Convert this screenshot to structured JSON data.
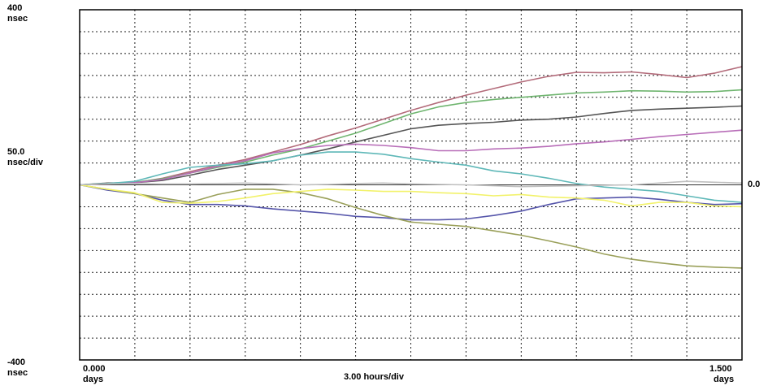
{
  "labels": {
    "y_top_value": "400",
    "y_top_unit": "nsec",
    "y_scale_value": "50.0",
    "y_scale_unit": "nsec/div",
    "y_bottom_value": "-400",
    "y_bottom_unit": "nsec",
    "x_start_value": "0.000",
    "x_start_unit": "days",
    "x_scale": "3.00 hours/div",
    "x_end_value": "1.500",
    "x_end_unit": "days",
    "zero_label": "0.0"
  },
  "chart_data": {
    "type": "line",
    "title": "",
    "x_unit": "days",
    "y_unit": "nsec",
    "xlim": [
      0,
      1.5
    ],
    "ylim": [
      -400,
      400
    ],
    "x_divisions": 12,
    "y_divisions": 16,
    "grid": true,
    "grid_style": "dotted",
    "x": [
      0,
      0.0625,
      0.125,
      0.1875,
      0.25,
      0.3125,
      0.375,
      0.4375,
      0.5,
      0.5625,
      0.625,
      0.6875,
      0.75,
      0.8125,
      0.875,
      0.9375,
      1.0,
      1.0625,
      1.125,
      1.1875,
      1.25,
      1.3125,
      1.375,
      1.4375,
      1.5
    ],
    "series": [
      {
        "color": "#b36b7a",
        "values": [
          0,
          2,
          5,
          15,
          30,
          45,
          58,
          75,
          92,
          112,
          130,
          150,
          170,
          188,
          205,
          220,
          235,
          248,
          257,
          256,
          258,
          252,
          245,
          255,
          270
        ]
      },
      {
        "color": "#6fb56f",
        "values": [
          0,
          3,
          6,
          14,
          27,
          40,
          52,
          68,
          82,
          100,
          118,
          140,
          162,
          178,
          188,
          195,
          200,
          205,
          210,
          212,
          215,
          214,
          212,
          213,
          217
        ]
      },
      {
        "color": "#555555",
        "values": [
          0,
          4,
          5,
          10,
          22,
          35,
          45,
          55,
          68,
          82,
          98,
          113,
          128,
          136,
          140,
          143,
          148,
          150,
          155,
          163,
          170,
          173,
          175,
          177,
          180
        ]
      },
      {
        "color": "#b86db8",
        "values": [
          0,
          2,
          5,
          12,
          27,
          42,
          55,
          73,
          83,
          90,
          93,
          90,
          85,
          78,
          78,
          82,
          84,
          88,
          94,
          98,
          104,
          110,
          115,
          120,
          125
        ]
      },
      {
        "color": "#5fb8b8",
        "values": [
          0,
          3,
          8,
          25,
          40,
          45,
          48,
          55,
          68,
          75,
          75,
          70,
          60,
          52,
          45,
          32,
          25,
          15,
          3,
          -5,
          -10,
          -15,
          -25,
          -35,
          -40
        ]
      },
      {
        "color": "#5555aa",
        "values": [
          0,
          -12,
          -20,
          -35,
          -45,
          -45,
          -48,
          -55,
          -60,
          -65,
          -72,
          -75,
          -80,
          -80,
          -78,
          -70,
          -60,
          -45,
          -32,
          -30,
          -28,
          -33,
          -40,
          -45,
          -43
        ]
      },
      {
        "color": "#9aa05a",
        "values": [
          0,
          -10,
          -20,
          -30,
          -40,
          -22,
          -10,
          -10,
          -18,
          -32,
          -52,
          -70,
          -85,
          -90,
          -95,
          -105,
          -115,
          -128,
          -142,
          -158,
          -170,
          -178,
          -185,
          -188,
          -190
        ]
      },
      {
        "color": "#f2f26a",
        "values": [
          0,
          -10,
          -18,
          -40,
          -42,
          -38,
          -30,
          -20,
          -15,
          -10,
          -12,
          -15,
          -15,
          -18,
          -20,
          -25,
          -22,
          -28,
          -30,
          -35,
          -48,
          -40,
          -40,
          -48,
          -50
        ]
      },
      {
        "color": "#bfbfbf",
        "values": [
          0,
          2,
          3,
          2,
          2,
          3,
          4,
          2,
          0,
          1,
          3,
          4,
          2,
          1,
          0,
          -2,
          -4,
          -3,
          -2,
          -1,
          0,
          4,
          8,
          6,
          4
        ]
      }
    ]
  }
}
